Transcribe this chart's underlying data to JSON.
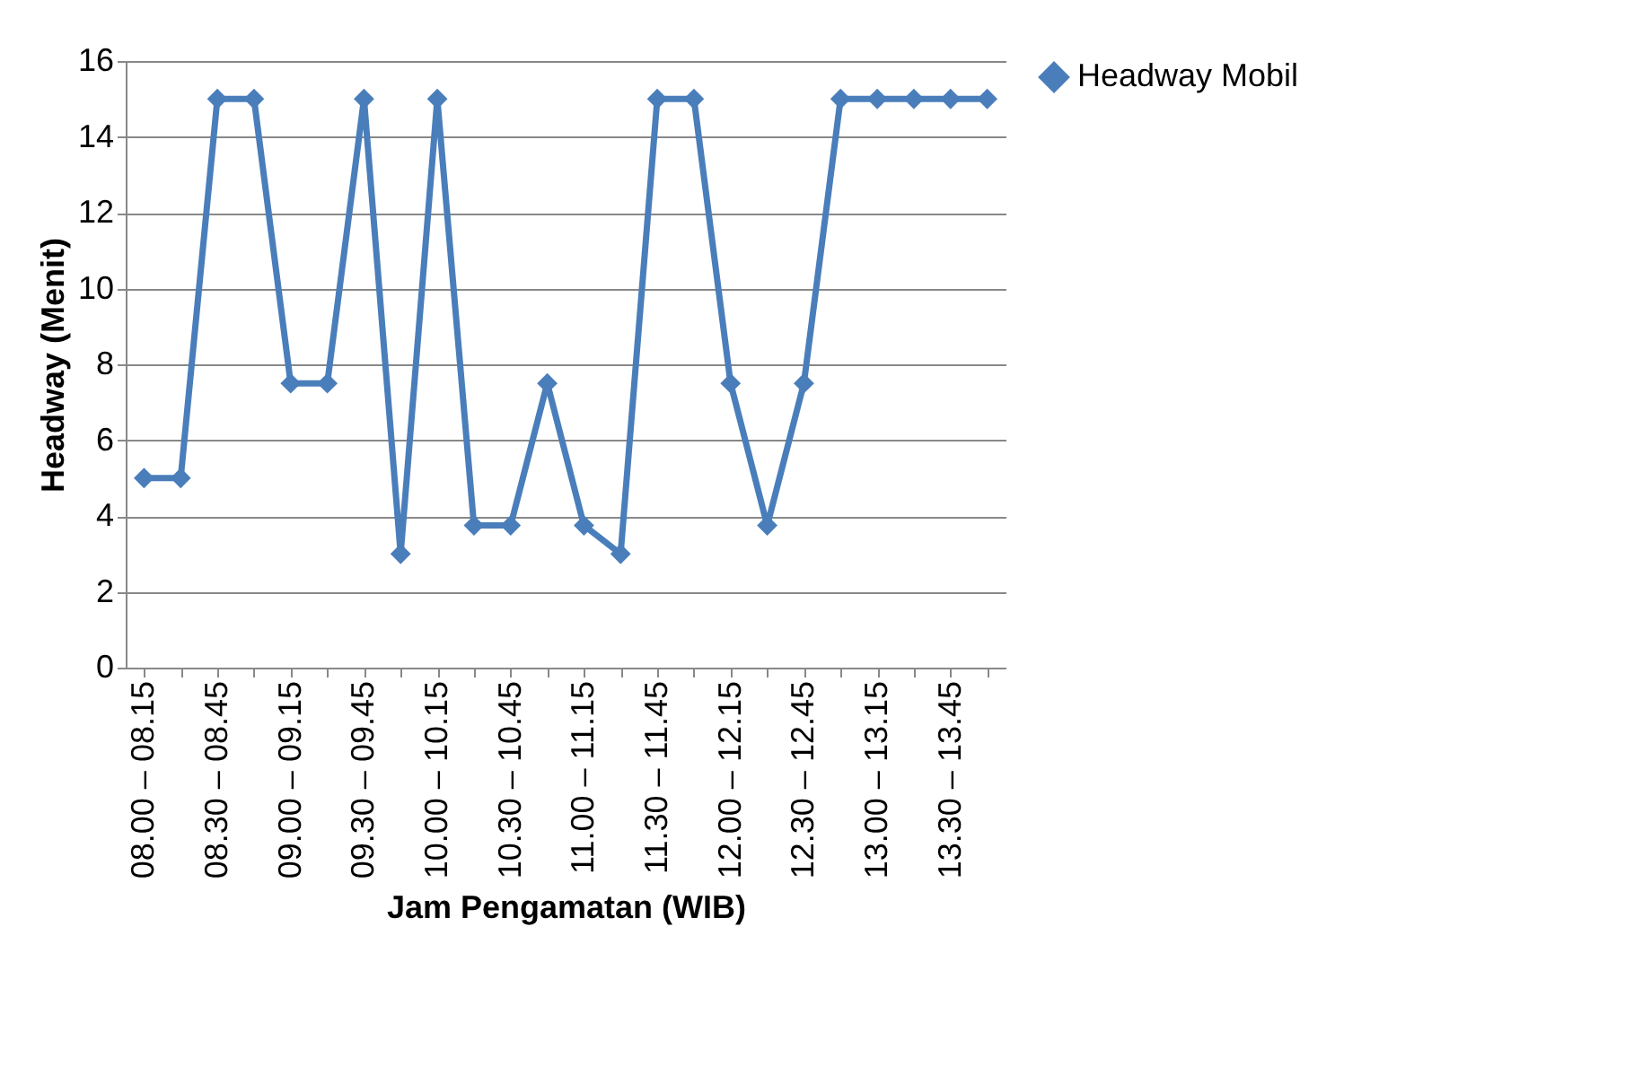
{
  "chart_data": {
    "type": "line",
    "xlabel": "Jam Pengamatan (WIB)",
    "ylabel": "Headway (Menit)",
    "categories": [
      "08.00 – 08.15",
      null,
      "08.30 – 08.45",
      null,
      "09.00 – 09.15",
      null,
      "09.30 – 09.45",
      null,
      "10.00 – 10.15",
      null,
      "10.30 – 10.45",
      null,
      "11.00 – 11.15",
      null,
      "11.30 – 11.45",
      null,
      "12.00 – 12.15",
      null,
      "12.30 – 12.45",
      null,
      "13.00 – 13.15",
      null,
      "13.30 – 13.45",
      null
    ],
    "series": [
      {
        "name": "Headway Mobil",
        "color": "#4a7ebb",
        "values": [
          5,
          5,
          15,
          15,
          7.5,
          7.5,
          15,
          3,
          15,
          3.75,
          3.75,
          7.5,
          3.75,
          3,
          15,
          15,
          7.5,
          3.75,
          7.5,
          15,
          15,
          15,
          15,
          15
        ]
      }
    ],
    "ylim": [
      0,
      16
    ],
    "yticks": [
      0,
      2,
      4,
      6,
      8,
      10,
      12,
      14,
      16
    ],
    "grid": "y",
    "legend": "right",
    "marker": "diamond",
    "line_style": "solid"
  }
}
